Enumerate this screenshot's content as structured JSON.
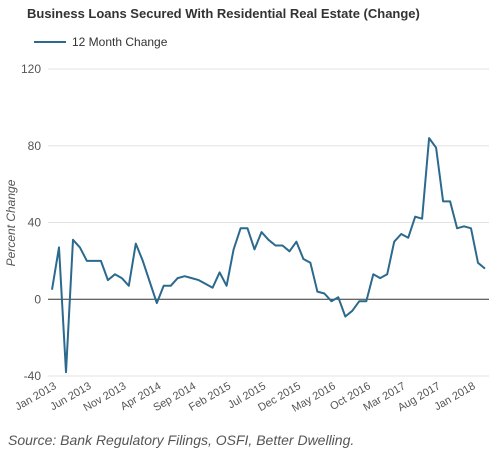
{
  "chart_data": {
    "type": "line",
    "title": "Business Loans Secured With Residential Real Estate (Change)",
    "ylabel": "Percent Change",
    "xlabel": "",
    "ylim": [
      -40,
      120
    ],
    "yticks": [
      -40,
      0,
      40,
      80,
      120
    ],
    "grid": true,
    "legend_position": "top-left",
    "x_tick_labels": [
      "Jan 2013",
      "Jun 2013",
      "Nov 2013",
      "Apr 2014",
      "Sep 2014",
      "Feb 2015",
      "Jul 2015",
      "Dec 2015",
      "May 2016",
      "Oct 2016",
      "Mar 2017",
      "Aug 2017",
      "Jan 2018"
    ],
    "x": [
      "Jan 2013",
      "Feb 2013",
      "Mar 2013",
      "Apr 2013",
      "May 2013",
      "Jun 2013",
      "Jul 2013",
      "Aug 2013",
      "Sep 2013",
      "Oct 2013",
      "Nov 2013",
      "Dec 2013",
      "Jan 2014",
      "Feb 2014",
      "Mar 2014",
      "Apr 2014",
      "May 2014",
      "Jun 2014",
      "Jul 2014",
      "Aug 2014",
      "Sep 2014",
      "Oct 2014",
      "Nov 2014",
      "Dec 2014",
      "Jan 2015",
      "Feb 2015",
      "Mar 2015",
      "Apr 2015",
      "May 2015",
      "Jun 2015",
      "Jul 2015",
      "Aug 2015",
      "Sep 2015",
      "Oct 2015",
      "Nov 2015",
      "Dec 2015",
      "Jan 2016",
      "Feb 2016",
      "Mar 2016",
      "Apr 2016",
      "May 2016",
      "Jun 2016",
      "Jul 2016",
      "Aug 2016",
      "Sep 2016",
      "Oct 2016",
      "Nov 2016",
      "Dec 2016",
      "Jan 2017",
      "Feb 2017",
      "Mar 2017",
      "Apr 2017",
      "May 2017",
      "Jun 2017",
      "Jul 2017",
      "Aug 2017",
      "Sep 2017",
      "Oct 2017",
      "Nov 2017",
      "Dec 2017",
      "Jan 2018",
      "Feb 2018",
      "Mar 2018"
    ],
    "series": [
      {
        "name": "12 Month Change",
        "color": "#2b6a8e",
        "values": [
          5,
          27,
          -38,
          31,
          27,
          20,
          20,
          20,
          10,
          13,
          11,
          7,
          29,
          20,
          9,
          -2,
          7,
          7,
          11,
          12,
          11,
          10,
          8,
          6,
          14,
          7,
          26,
          37,
          37,
          26,
          35,
          31,
          28,
          28,
          25,
          30,
          21,
          19,
          4,
          3,
          -1,
          1,
          -9,
          -6,
          -1,
          -1,
          13,
          11,
          13,
          30,
          34,
          32,
          43,
          42,
          84,
          79,
          51,
          51,
          37,
          38,
          37,
          19,
          16
        ]
      }
    ]
  },
  "source": "Source: Bank Regulatory Filings, OSFI, Better Dwelling."
}
